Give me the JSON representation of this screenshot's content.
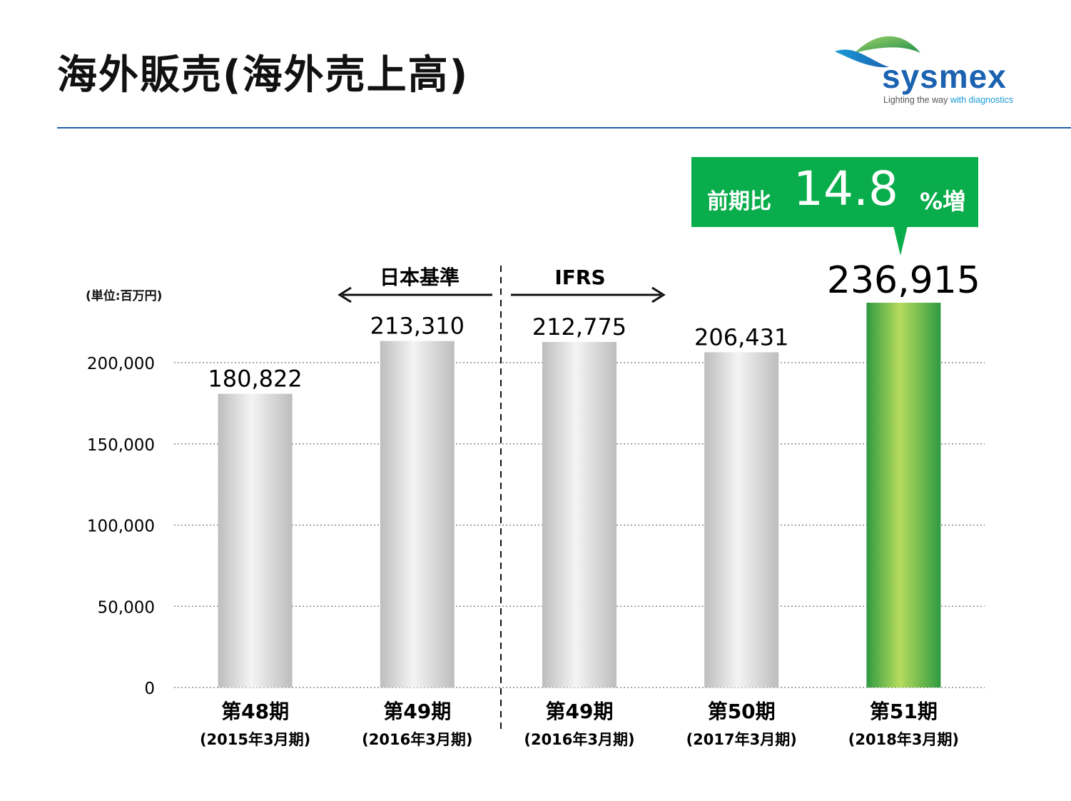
{
  "title": "海外販売(海外売上高)",
  "logo": {
    "wordmark": "sysmex",
    "tagline_part1": "Lighting the way ",
    "tagline_part2": "with diagnostics",
    "brand_color": "#1b62b0",
    "accent_color": "#1a9ad6"
  },
  "callout": {
    "prefix": "前期比",
    "value": "14.8",
    "suffix": "%増",
    "color": "#0aad4b"
  },
  "standards": {
    "left": "日本基準",
    "right": "IFRS"
  },
  "chart_data": {
    "type": "bar",
    "unit_label": "(単位:百万円)",
    "categories": [
      "第48期",
      "第49期",
      "第49期",
      "第50期",
      "第51期"
    ],
    "subcategories": [
      "(2015年3月期)",
      "(2016年3月期)",
      "(2016年3月期)",
      "(2017年3月期)",
      "(2018年3月期)"
    ],
    "values": [
      180822,
      213310,
      212775,
      206431,
      236915
    ],
    "value_labels": [
      "180,822",
      "213,310",
      "212,775",
      "206,431",
      "236,915"
    ],
    "highlight_index": 4,
    "ylim": [
      0,
      200000
    ],
    "yticks": [
      0,
      50000,
      100000,
      150000,
      200000
    ],
    "ytick_labels": [
      "0",
      "50,000",
      "100,000",
      "150,000",
      "200,000"
    ],
    "grid": true,
    "colors": {
      "bar_gray": "#cfcfcf",
      "bar_highlight": "#7cc242",
      "grid": "#888888"
    }
  }
}
